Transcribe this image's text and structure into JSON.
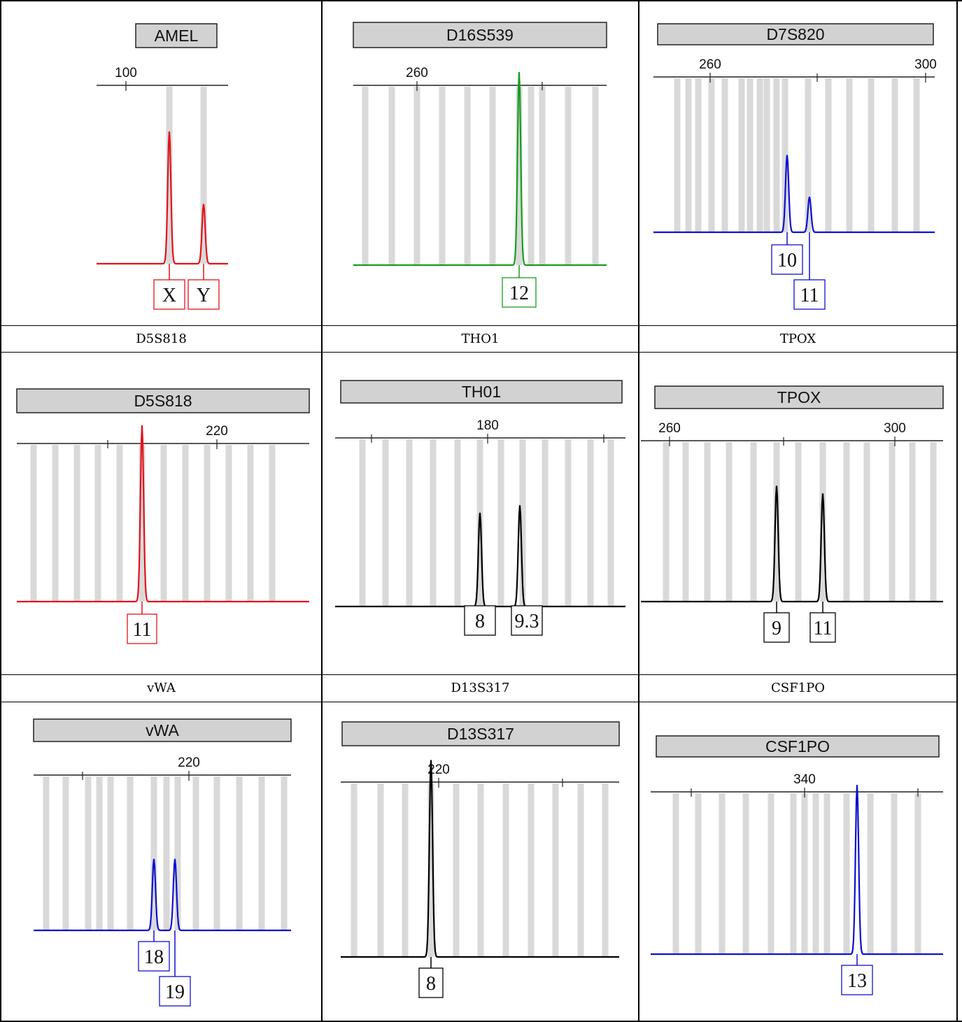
{
  "captions": [
    [
      "D5S818",
      "THO1",
      "TPOX"
    ],
    [
      "vWA",
      "D13S317",
      "CSF1PO"
    ]
  ],
  "chart_data": [
    {
      "type": "electropherogram",
      "marker": "AMEL",
      "color": "#e0141c",
      "ticks": [
        "100"
      ],
      "alleles": [
        "X",
        "Y"
      ],
      "peaks": [
        {
          "allele": "X",
          "height": 0.62
        },
        {
          "allele": "Y",
          "height": 0.28
        }
      ]
    },
    {
      "type": "electropherogram",
      "marker": "D16S539",
      "color": "#169e1c",
      "ticks": [
        "260"
      ],
      "alleles": [
        "12"
      ],
      "peaks": [
        {
          "allele": "12",
          "height": 0.92
        }
      ]
    },
    {
      "type": "electropherogram",
      "marker": "D7S820",
      "color": "#1010d0",
      "ticks": [
        "260",
        "300"
      ],
      "alleles": [
        "10",
        "11"
      ],
      "peaks": [
        {
          "allele": "10",
          "height": 0.48
        },
        {
          "allele": "11",
          "height": 0.22
        }
      ]
    },
    {
      "type": "electropherogram",
      "marker": "D5S818",
      "color": "#e0141c",
      "ticks": [
        "220"
      ],
      "alleles": [
        "11"
      ],
      "peaks": [
        {
          "allele": "11",
          "height": 0.9
        }
      ]
    },
    {
      "type": "electropherogram",
      "marker": "TH01",
      "color": "#000000",
      "ticks": [
        "180"
      ],
      "alleles": [
        "8",
        "9.3"
      ],
      "peaks": [
        {
          "allele": "8",
          "height": 0.5
        },
        {
          "allele": "9.3",
          "height": 0.54
        }
      ]
    },
    {
      "type": "electropherogram",
      "marker": "TPOX",
      "color": "#000000",
      "ticks": [
        "260",
        "300"
      ],
      "alleles": [
        "9",
        "11"
      ],
      "peaks": [
        {
          "allele": "9",
          "height": 0.6
        },
        {
          "allele": "11",
          "height": 0.56
        }
      ]
    },
    {
      "type": "electropherogram",
      "marker": "vWA",
      "color": "#1010d0",
      "ticks": [
        "220"
      ],
      "alleles": [
        "18",
        "19"
      ],
      "peaks": [
        {
          "allele": "18",
          "height": 0.44
        },
        {
          "allele": "19",
          "height": 0.44
        }
      ]
    },
    {
      "type": "electropherogram",
      "marker": "D13S317",
      "color": "#000000",
      "ticks": [
        "220"
      ],
      "alleles": [
        "8"
      ],
      "peaks": [
        {
          "allele": "8",
          "height": 0.92
        }
      ]
    },
    {
      "type": "electropherogram",
      "marker": "CSF1PO",
      "color": "#1010d0",
      "ticks": [
        "340"
      ],
      "alleles": [
        "13"
      ],
      "peaks": [
        {
          "allele": "13",
          "height": 0.84
        }
      ]
    }
  ]
}
